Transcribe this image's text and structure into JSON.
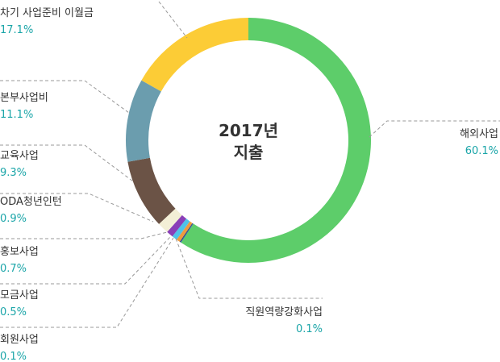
{
  "chart_data": {
    "type": "pie",
    "variant": "donut",
    "title": "2017년 지출",
    "title_lines": [
      "2017년",
      "지출"
    ],
    "slices": [
      {
        "label": "해외사업",
        "value": 60.1,
        "display": "60.1%",
        "color": "#5dcd6a"
      },
      {
        "label": "직원역량강화사업",
        "value": 0.1,
        "display": "0.1%",
        "color": "#2e5ea8"
      },
      {
        "label": "회원사업",
        "value": 0.1,
        "display": "0.1%",
        "color": "#1f3f73"
      },
      {
        "label": "모금사업",
        "value": 0.5,
        "display": "0.5%",
        "color": "#f09a3e"
      },
      {
        "label": "홍보사업",
        "value": 0.7,
        "display": "0.7%",
        "color": "#4fc3e8"
      },
      {
        "label": "ODA청년인턴",
        "value": 0.9,
        "display": "0.9%",
        "color": "#8a3fb8"
      },
      {
        "label": "교육사업",
        "value": 9.3,
        "display": "9.3%",
        "color": "#6b5346"
      },
      {
        "label": "본부사업비",
        "value": 11.1,
        "display": "11.1%",
        "color": "#6b9dae"
      },
      {
        "label": "차기 사업준비 이월금",
        "value": 17.1,
        "display": "17.1%",
        "color": "#fccc36"
      }
    ],
    "extra_slices": [
      {
        "value": 1.5,
        "color": "#f3efd6"
      }
    ]
  }
}
